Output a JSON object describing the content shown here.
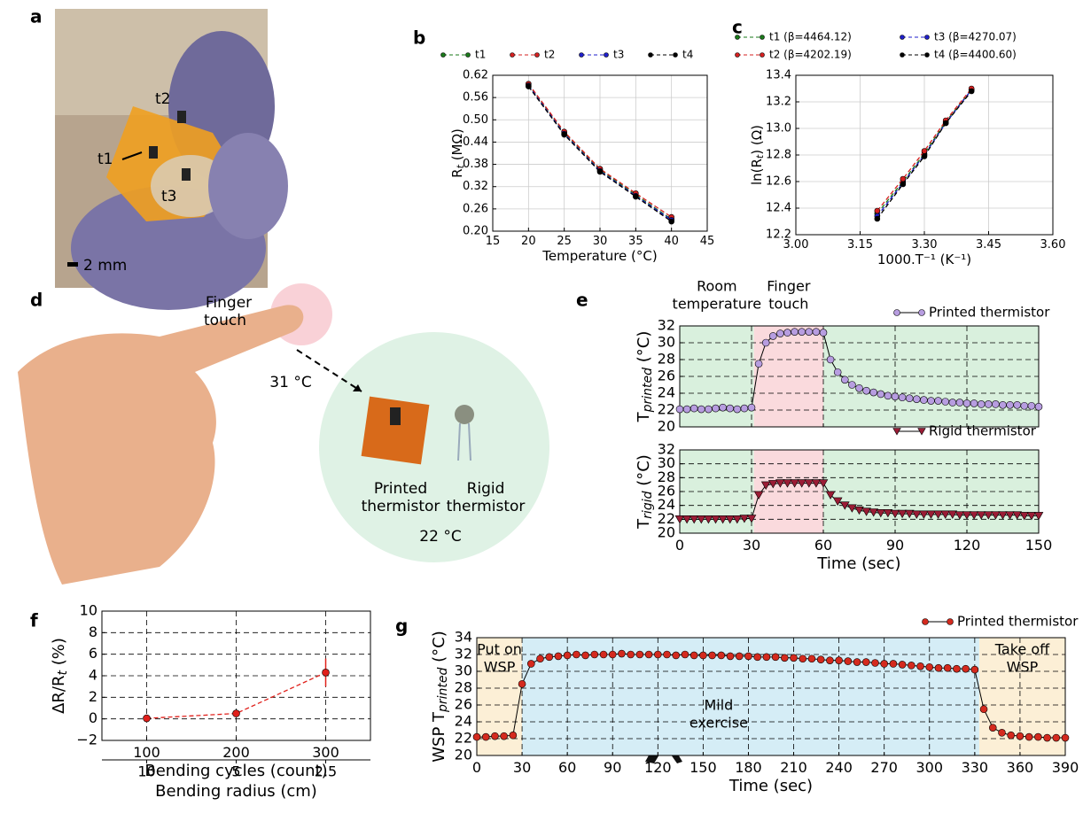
{
  "panels": [
    "a",
    "b",
    "c",
    "d",
    "e",
    "f",
    "g"
  ],
  "photo_a": {
    "labels": [
      "t2",
      "t1",
      "t3"
    ],
    "scale": "2 mm"
  },
  "photo_d": {
    "touch": [
      "Finger",
      "touch"
    ],
    "hot": "31 °C",
    "cold": "22 °C",
    "printed": [
      "Printed",
      "thermistor"
    ],
    "rigid": [
      "Rigid",
      "thermistor"
    ]
  },
  "chart_data": [
    {
      "type": "line",
      "x": [
        20,
        25,
        30,
        35,
        40
      ],
      "series": [
        {
          "name": "t1",
          "color": "#1a7a1a",
          "values": [
            0.595,
            0.465,
            0.365,
            0.298,
            0.232
          ]
        },
        {
          "name": "t2",
          "color": "#d62020",
          "values": [
            0.597,
            0.468,
            0.368,
            0.302,
            0.238
          ]
        },
        {
          "name": "t3",
          "color": "#1f1fcc",
          "values": [
            0.592,
            0.462,
            0.362,
            0.295,
            0.23
          ]
        },
        {
          "name": "t4",
          "color": "#000000",
          "values": [
            0.59,
            0.46,
            0.36,
            0.293,
            0.226
          ]
        }
      ],
      "marker": "circle",
      "linestyle": "dashed",
      "xlim": [
        15,
        45
      ],
      "xticks": [
        15,
        20,
        25,
        30,
        35,
        40,
        45
      ],
      "ylim": [
        0.2,
        0.62
      ],
      "yticks": [
        {
          "value": 0.2,
          "label": "0.20"
        },
        0.26,
        0.32,
        0.38,
        0.44,
        {
          "value": 0.5,
          "label": "0.50"
        },
        0.56,
        0.62
      ],
      "xlabel": "Temperature (°C)",
      "ylabel": {
        "main": "R",
        "sub": "t",
        "unit": " (MΩ)"
      },
      "grid": "solid",
      "legend": "top",
      "legend_columns": 4
    },
    {
      "type": "line",
      "x": [
        3.19,
        3.25,
        3.3,
        3.35,
        3.41
      ],
      "series": [
        {
          "name": "t1 (β=4464.12)",
          "color": "#1a7a1a",
          "values": [
            12.36,
            12.6,
            12.81,
            13.05,
            13.29
          ]
        },
        {
          "name": "t3 (β=4270.07)",
          "color": "#1f1fcc",
          "values": [
            12.34,
            12.59,
            12.8,
            13.04,
            13.29
          ]
        },
        {
          "name": "t2 (β=4202.19)",
          "color": "#d62020",
          "values": [
            12.38,
            12.62,
            12.83,
            13.06,
            13.3
          ]
        },
        {
          "name": "t4 (β=4400.60)",
          "color": "#000000",
          "values": [
            12.32,
            12.58,
            12.79,
            13.04,
            13.28
          ]
        }
      ],
      "marker": "circle",
      "linestyle": "dashed",
      "xlim": [
        3.0,
        3.6
      ],
      "xticks": [
        {
          "value": 3.0,
          "label": "3.00"
        },
        3.15,
        {
          "value": 3.3,
          "label": "3.30"
        },
        3.45,
        {
          "value": 3.6,
          "label": "3.60"
        }
      ],
      "ylim": [
        12.2,
        13.4
      ],
      "yticks": [
        12.2,
        12.4,
        12.6,
        12.8,
        {
          "value": 13.0,
          "label": "13.0"
        },
        13.2,
        13.4
      ],
      "xlabel": "1000.T⁻¹ (K⁻¹)",
      "ylabel": {
        "main": "ln(R",
        "sub": "t",
        "unit": ") (Ω)"
      },
      "grid": "solid",
      "legend": "top",
      "legend_columns": 2
    },
    {
      "type": "line",
      "x": [
        0,
        3,
        6,
        9,
        12,
        15,
        18,
        21,
        24,
        27,
        30,
        33,
        36,
        39,
        42,
        45,
        48,
        51,
        54,
        57,
        60,
        63,
        66,
        69,
        72,
        75,
        78,
        81,
        84,
        87,
        90,
        93,
        96,
        99,
        102,
        105,
        108,
        111,
        114,
        117,
        120,
        123,
        126,
        129,
        132,
        135,
        138,
        141,
        144,
        147,
        150
      ],
      "series": [
        {
          "name": "Printed thermistor",
          "color": "#b79de0",
          "values": [
            22.1,
            22.1,
            22.2,
            22.1,
            22.1,
            22.2,
            22.3,
            22.2,
            22.1,
            22.2,
            22.3,
            27.5,
            30.0,
            30.8,
            31.1,
            31.2,
            31.3,
            31.3,
            31.3,
            31.3,
            31.2,
            28.0,
            26.5,
            25.6,
            25.0,
            24.6,
            24.3,
            24.1,
            23.9,
            23.7,
            23.6,
            23.5,
            23.4,
            23.3,
            23.2,
            23.1,
            23.1,
            23.0,
            22.9,
            22.9,
            22.8,
            22.8,
            22.7,
            22.7,
            22.7,
            22.6,
            22.6,
            22.6,
            22.5,
            22.5,
            22.4
          ]
        }
      ],
      "marker": "circle",
      "linestyle": "solid",
      "xlim": [
        0,
        150
      ],
      "xticks": [
        0,
        30,
        60,
        90,
        120,
        150
      ],
      "show_xtick_labels": false,
      "ylim": [
        20,
        32
      ],
      "yticks": [
        20,
        22,
        24,
        26,
        28,
        30,
        32
      ],
      "ylabel": {
        "main": "T",
        "sub": "printed",
        "unit": " (°C)"
      },
      "regions": [
        {
          "from": 0,
          "to": 31,
          "color": "#d9f0dd",
          "label": [
            "Room",
            "temperature"
          ]
        },
        {
          "from": 31,
          "to": 60,
          "color": "#fadadd",
          "label": [
            "Finger",
            "touch"
          ]
        },
        {
          "from": 60,
          "to": 150,
          "color": "#d9f0dd"
        }
      ],
      "grid": "dashed",
      "legend": "top-right",
      "legend_columns": 1
    },
    {
      "type": "line",
      "x": [
        0,
        3,
        6,
        9,
        12,
        15,
        18,
        21,
        24,
        27,
        30,
        33,
        36,
        39,
        42,
        45,
        48,
        51,
        54,
        57,
        60,
        63,
        66,
        69,
        72,
        75,
        78,
        81,
        84,
        87,
        90,
        93,
        96,
        99,
        102,
        105,
        108,
        111,
        114,
        117,
        120,
        123,
        126,
        129,
        132,
        135,
        138,
        141,
        144,
        147,
        150
      ],
      "series": [
        {
          "name": "Rigid thermistor",
          "color": "#9b1c35",
          "values": [
            22.0,
            22.0,
            22.0,
            22.0,
            22.0,
            22.0,
            22.0,
            22.0,
            22.0,
            22.1,
            22.1,
            25.5,
            26.9,
            27.1,
            27.2,
            27.2,
            27.2,
            27.2,
            27.2,
            27.2,
            27.2,
            25.5,
            24.6,
            24.0,
            23.6,
            23.3,
            23.1,
            23.0,
            22.9,
            22.9,
            22.8,
            22.8,
            22.8,
            22.7,
            22.7,
            22.7,
            22.7,
            22.7,
            22.7,
            22.6,
            22.6,
            22.6,
            22.6,
            22.6,
            22.6,
            22.6,
            22.6,
            22.6,
            22.5,
            22.5,
            22.5
          ]
        }
      ],
      "marker": "triangle-down",
      "linestyle": "solid",
      "xlim": [
        0,
        150
      ],
      "xticks": [
        0,
        30,
        60,
        90,
        120,
        150
      ],
      "ylim": [
        20,
        32
      ],
      "yticks": [
        20,
        22,
        24,
        26,
        28,
        30,
        32
      ],
      "xlabel": "Time (sec)",
      "ylabel": {
        "main": "T",
        "sub": "rigid",
        "unit": " (°C)"
      },
      "regions": [
        {
          "from": 0,
          "to": 31,
          "color": "#d9f0dd"
        },
        {
          "from": 31,
          "to": 60,
          "color": "#fadadd"
        },
        {
          "from": 60,
          "to": 150,
          "color": "#d9f0dd"
        }
      ],
      "grid": "dashed",
      "legend": "top-right",
      "legend_columns": 1
    },
    {
      "type": "line",
      "x": [
        100,
        200,
        300
      ],
      "series": [
        {
          "color": "#e0201b",
          "values": [
            0.05,
            0.5,
            4.3
          ],
          "errors": [
            0.1,
            0.3,
            1.3
          ]
        }
      ],
      "marker": "circle",
      "linestyle": "dashed",
      "xlim": [
        50,
        350
      ],
      "xticks": [
        100,
        200,
        300
      ],
      "x2ticks": [
        10,
        5,
        2.5
      ],
      "ylim": [
        -2,
        10
      ],
      "yticks": [
        {
          "value": -2,
          "label": "−2"
        },
        0,
        2,
        4,
        6,
        8,
        10
      ],
      "xlabel": "Bending cycles (count)",
      "x2label": "Bending radius (cm)",
      "ylabel": {
        "main": "ΔR/R",
        "sub": "t",
        "unit": " (%)"
      },
      "grid": "dashed"
    },
    {
      "type": "line",
      "x": [
        0,
        6,
        12,
        18,
        24,
        30,
        36,
        42,
        48,
        54,
        60,
        66,
        72,
        78,
        84,
        90,
        96,
        102,
        108,
        114,
        120,
        126,
        132,
        138,
        144,
        150,
        156,
        162,
        168,
        174,
        180,
        186,
        192,
        198,
        204,
        210,
        216,
        222,
        228,
        234,
        240,
        246,
        252,
        258,
        264,
        270,
        276,
        282,
        288,
        294,
        300,
        306,
        312,
        318,
        324,
        330,
        336,
        342,
        348,
        354,
        360,
        366,
        372,
        378,
        384,
        390
      ],
      "series": [
        {
          "name": "Printed thermistor",
          "color": "#d42a1e",
          "values": [
            22.2,
            22.2,
            22.3,
            22.3,
            22.4,
            28.5,
            30.9,
            31.5,
            31.7,
            31.8,
            31.9,
            32.0,
            31.9,
            32.0,
            32.0,
            32.0,
            32.1,
            32.0,
            32.0,
            32.0,
            32.0,
            32.0,
            31.9,
            32.0,
            31.9,
            31.9,
            31.9,
            31.9,
            31.8,
            31.8,
            31.8,
            31.7,
            31.7,
            31.7,
            31.6,
            31.6,
            31.5,
            31.5,
            31.4,
            31.3,
            31.3,
            31.2,
            31.1,
            31.1,
            31.0,
            30.9,
            30.9,
            30.8,
            30.7,
            30.6,
            30.5,
            30.4,
            30.4,
            30.3,
            30.3,
            30.2,
            25.5,
            23.3,
            22.7,
            22.4,
            22.3,
            22.2,
            22.2,
            22.1,
            22.1,
            22.1
          ]
        }
      ],
      "marker": "circle",
      "linestyle": "solid",
      "xlim": [
        0,
        390
      ],
      "xticks": [
        0,
        30,
        60,
        90,
        120,
        150,
        180,
        210,
        240,
        270,
        300,
        330,
        360,
        390
      ],
      "ylim": [
        20,
        34
      ],
      "yticks": [
        20,
        22,
        24,
        26,
        28,
        30,
        32,
        34
      ],
      "xlabel": "Time (sec)",
      "ylabel": {
        "main": "WSP T",
        "sub": "printed",
        "unit": " (°C)"
      },
      "regions": [
        {
          "from": 0,
          "to": 30,
          "color": "#fcefd6",
          "label": [
            "Put on",
            "WSP"
          ]
        },
        {
          "from": 30,
          "to": 333,
          "color": "#d5edf6",
          "label": [
            "Mild",
            "exercise"
          ]
        },
        {
          "from": 333,
          "to": 390,
          "color": "#fcefd6",
          "label": [
            "Take off",
            "WSP"
          ]
        }
      ],
      "grid": "dashed",
      "legend": "top-right",
      "legend_columns": 1
    }
  ]
}
